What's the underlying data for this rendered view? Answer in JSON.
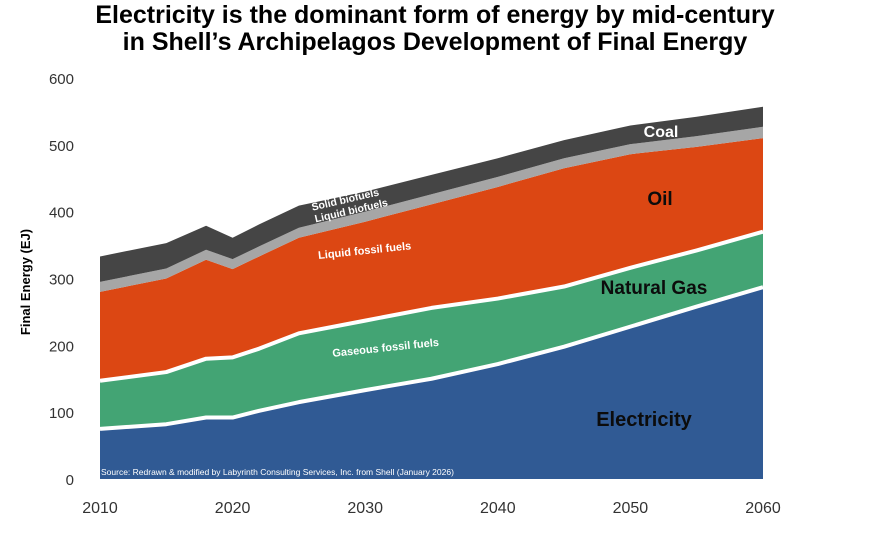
{
  "title_line1": "Electricity is the dominant form of energy by mid-century",
  "title_line2": "in Shell’s Archipelagos Development of Final Energy",
  "chart_data": {
    "type": "area",
    "stacked": true,
    "ylabel": "Final Energy (EJ)",
    "xlabel": "",
    "ylim": [
      0,
      600
    ],
    "xlim": [
      2010,
      2060
    ],
    "yticks": [
      "0",
      "100",
      "200",
      "300",
      "400",
      "500",
      "600"
    ],
    "xticks": [
      "2010",
      "2020",
      "2030",
      "2040",
      "2050",
      "2060"
    ],
    "grid": false,
    "x": [
      2010,
      2015,
      2018,
      2020,
      2022,
      2025,
      2030,
      2035,
      2040,
      2045,
      2050,
      2055,
      2060
    ],
    "series": [
      {
        "name": "Electricity",
        "label": "Electricity",
        "color": "#305a94",
        "values": [
          75,
          82,
          92,
          92,
          102,
          115,
          133,
          150,
          172,
          198,
          228,
          258,
          287
        ]
      },
      {
        "name": "Natural Gas",
        "label": "Natural Gas",
        "inner_label": "Gaseous fossil fuels",
        "color": "#43a474",
        "values": [
          72,
          78,
          88,
          90,
          93,
          103,
          104,
          106,
          98,
          90,
          88,
          84,
          83
        ]
      },
      {
        "name": "Oil",
        "label": "Oil",
        "inner_label": "Liquid fossil fuels",
        "color": "#dc4713",
        "values": [
          133,
          140,
          148,
          132,
          138,
          143,
          148,
          155,
          167,
          177,
          170,
          155,
          140
        ]
      },
      {
        "name": "Liquid biofuels",
        "inner_label": "Liquid biofuels",
        "color": "#a6a6a6",
        "values": [
          15,
          15,
          15,
          15,
          15,
          15,
          15,
          15,
          15,
          15,
          15,
          16,
          17
        ]
      },
      {
        "name": "Coal",
        "label": "Coal",
        "inner_label": "Solid biofuels",
        "color": "#454545",
        "values": [
          38,
          38,
          36,
          32,
          33,
          33,
          30,
          29,
          28,
          27,
          28,
          29,
          30
        ]
      }
    ],
    "source_note": "Source: Redrawn & modified by Labyrinth Consulting Services, Inc. from Shell (January 2026)"
  }
}
